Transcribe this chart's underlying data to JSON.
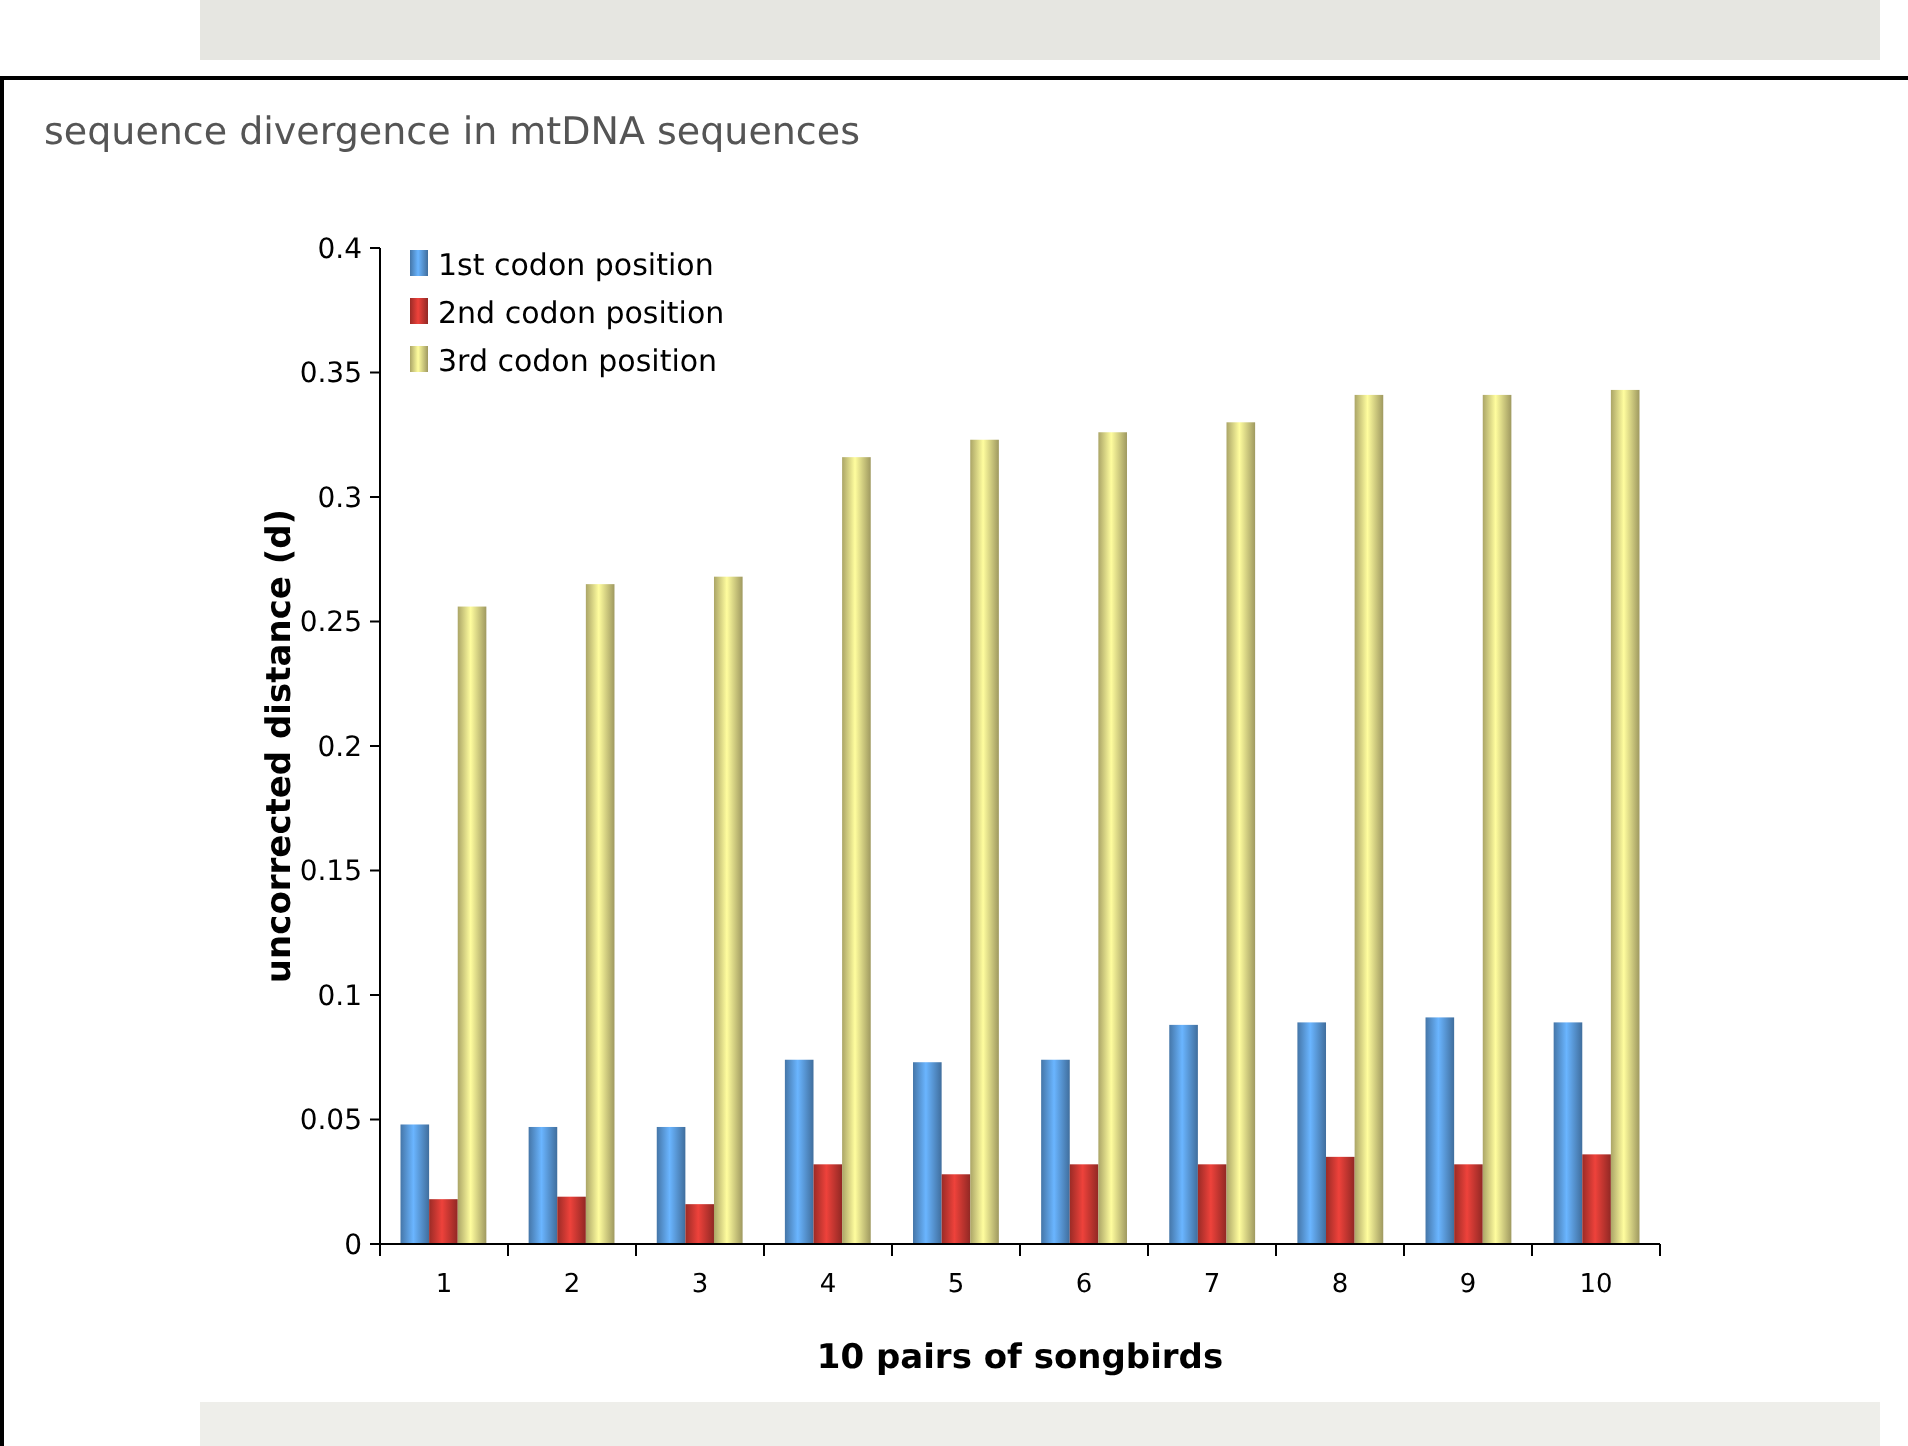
{
  "chart_data": {
    "type": "bar",
    "title": "sequence divergence in mtDNA sequences",
    "xlabel": "10 pairs of songbirds",
    "ylabel": "uncorrected distance (d)",
    "categories": [
      "1",
      "2",
      "3",
      "4",
      "5",
      "6",
      "7",
      "8",
      "9",
      "10"
    ],
    "series": [
      {
        "name": "1st codon position",
        "color": "#5fa3e8",
        "values": [
          0.048,
          0.047,
          0.047,
          0.074,
          0.073,
          0.074,
          0.088,
          0.089,
          0.091,
          0.089
        ]
      },
      {
        "name": "2nd codon position",
        "color": "#d63b35",
        "values": [
          0.018,
          0.019,
          0.016,
          0.032,
          0.028,
          0.032,
          0.032,
          0.035,
          0.032,
          0.036
        ]
      },
      {
        "name": "3rd codon position",
        "color": "#ece38e",
        "values": [
          0.256,
          0.265,
          0.268,
          0.316,
          0.323,
          0.326,
          0.33,
          0.341,
          0.341,
          0.343
        ]
      }
    ],
    "ylim": [
      0,
      0.4
    ],
    "yticks": [
      0,
      0.05,
      0.1,
      0.15,
      0.2,
      0.25,
      0.3,
      0.35,
      0.4
    ],
    "grid": false,
    "legend": "top left"
  }
}
